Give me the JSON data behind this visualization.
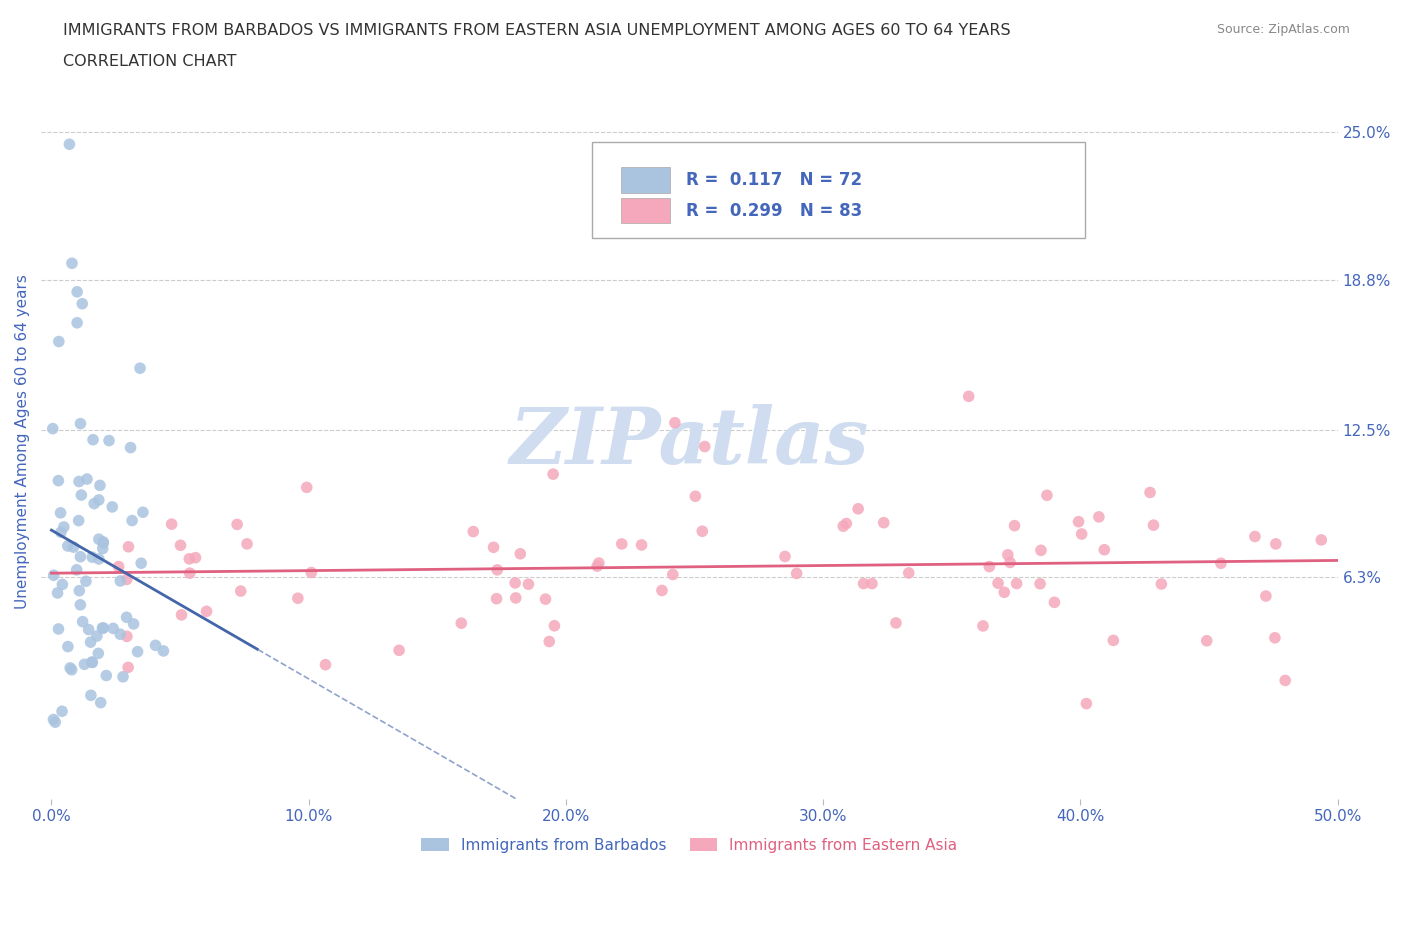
{
  "title_line1": "IMMIGRANTS FROM BARBADOS VS IMMIGRANTS FROM EASTERN ASIA UNEMPLOYMENT AMONG AGES 60 TO 64 YEARS",
  "title_line2": "CORRELATION CHART",
  "source_text": "Source: ZipAtlas.com",
  "ylabel": "Unemployment Among Ages 60 to 64 years",
  "xlim": [
    0.0,
    0.5
  ],
  "ylim": [
    -0.03,
    0.27
  ],
  "xtick_vals": [
    0.0,
    0.1,
    0.2,
    0.3,
    0.4,
    0.5
  ],
  "xticklabels": [
    "0.0%",
    "10.0%",
    "20.0%",
    "30.0%",
    "40.0%",
    "50.0%"
  ],
  "yticks_right": [
    0.063,
    0.125,
    0.188,
    0.25
  ],
  "ytick_labels_right": [
    "6.3%",
    "12.5%",
    "18.8%",
    "25.0%"
  ],
  "barbados_color": "#aac4e0",
  "eastern_asia_color": "#f5a8bb",
  "barbados_R": 0.117,
  "barbados_N": 72,
  "eastern_asia_R": 0.299,
  "eastern_asia_N": 83,
  "trend_blue_color": "#4466aa",
  "trend_pink_color": "#e06080",
  "legend_label_barbados": "Immigrants from Barbados",
  "legend_label_eastern_asia": "Immigrants from Eastern Asia",
  "watermark": "ZIPatlas",
  "watermark_color": "#d0ddf0",
  "background_color": "#ffffff",
  "grid_color": "#cccccc",
  "title_color": "#333333",
  "axis_color": "#4466bb",
  "legend_text_color": "#222222",
  "legend_R_color": "#4466bb"
}
